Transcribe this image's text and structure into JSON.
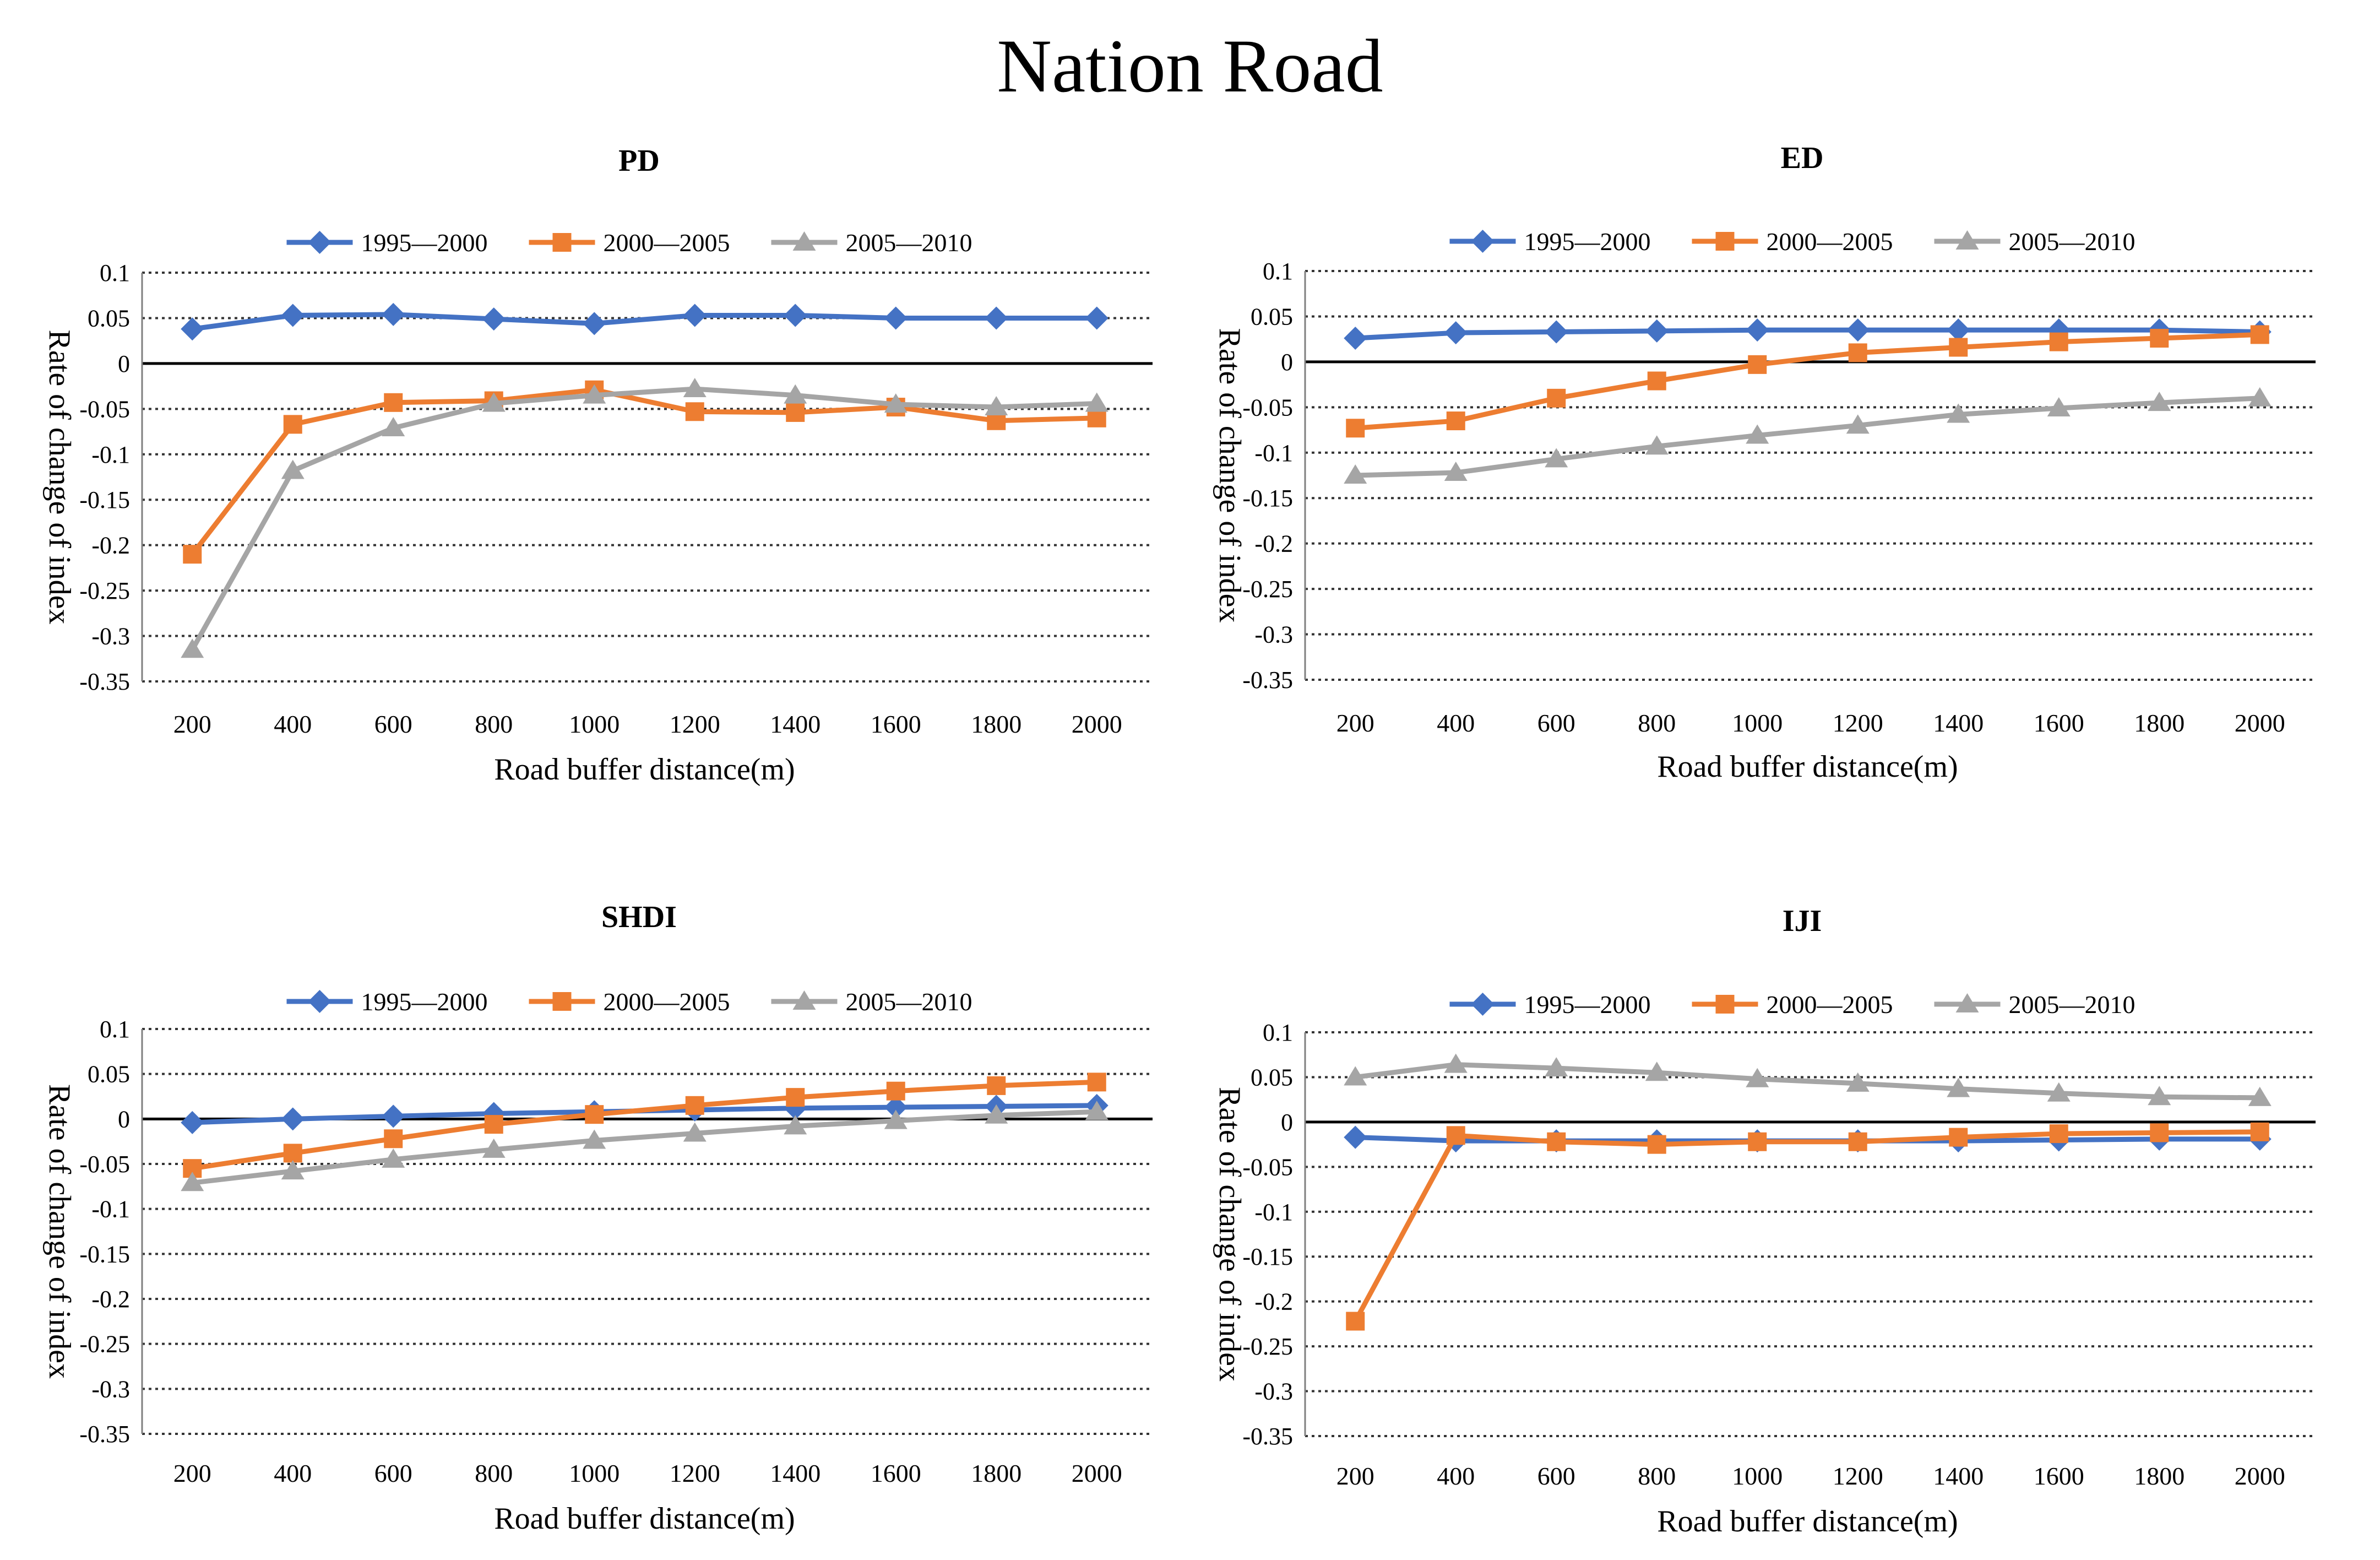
{
  "page_title": "Nation Road",
  "colors": {
    "series_1": "#4472C4",
    "series_2": "#ED7D31",
    "series_3": "#A5A5A5",
    "axis": "#000000",
    "grid": "#333333"
  },
  "chart_data": [
    {
      "type": "line",
      "title": "PD",
      "xlabel": "Road buffer distance(m)",
      "ylabel": "Rate of change of index",
      "ylim": [
        -0.35,
        0.1
      ],
      "yticks": [
        "0.1",
        "0.05",
        "0",
        "-0.05",
        "-0.1",
        "-0.15",
        "-0.2",
        "-0.25",
        "-0.3",
        "-0.35"
      ],
      "grid": true,
      "legend": "top",
      "categories": [
        "200",
        "400",
        "600",
        "800",
        "1000",
        "1200",
        "1400",
        "1600",
        "1800",
        "2000"
      ],
      "series": [
        {
          "name": "1995—2000",
          "marker": "diamond",
          "values": [
            0.038,
            0.053,
            0.054,
            0.049,
            0.044,
            0.053,
            0.053,
            0.05,
            0.05,
            0.05
          ]
        },
        {
          "name": "2000—2005",
          "marker": "square",
          "values": [
            -0.21,
            -0.067,
            -0.043,
            -0.041,
            -0.029,
            -0.053,
            -0.054,
            -0.048,
            -0.063,
            -0.06
          ]
        },
        {
          "name": "2005—2010",
          "marker": "triangle",
          "values": [
            -0.315,
            -0.118,
            -0.071,
            -0.044,
            -0.035,
            -0.028,
            -0.035,
            -0.045,
            -0.048,
            -0.044
          ]
        }
      ]
    },
    {
      "type": "line",
      "title": "ED",
      "xlabel": "Road buffer distance(m)",
      "ylabel": "Rate of change of index",
      "ylim": [
        -0.35,
        0.1
      ],
      "yticks": [
        "0.1",
        "0.05",
        "0",
        "-0.05",
        "-0.1",
        "-0.15",
        "-0.2",
        "-0.25",
        "-0.3",
        "-0.35"
      ],
      "grid": true,
      "legend": "top",
      "categories": [
        "200",
        "400",
        "600",
        "800",
        "1000",
        "1200",
        "1400",
        "1600",
        "1800",
        "2000"
      ],
      "series": [
        {
          "name": "1995—2000",
          "marker": "diamond",
          "values": [
            0.026,
            0.032,
            0.033,
            0.034,
            0.035,
            0.035,
            0.035,
            0.035,
            0.035,
            0.033
          ]
        },
        {
          "name": "2000—2005",
          "marker": "square",
          "values": [
            -0.073,
            -0.065,
            -0.04,
            -0.021,
            -0.003,
            0.01,
            0.016,
            0.022,
            0.026,
            0.03
          ]
        },
        {
          "name": "2005—2010",
          "marker": "triangle",
          "values": [
            -0.125,
            -0.122,
            -0.107,
            -0.093,
            -0.081,
            -0.07,
            -0.058,
            -0.051,
            -0.045,
            -0.04
          ]
        }
      ]
    },
    {
      "type": "line",
      "title": "SHDI",
      "xlabel": "Road buffer distance(m)",
      "ylabel": "Rate of change of index",
      "ylim": [
        -0.35,
        0.1
      ],
      "yticks": [
        "0.1",
        "0.05",
        "0",
        "-0.05",
        "-0.1",
        "-0.15",
        "-0.2",
        "-0.25",
        "-0.3",
        "-0.35"
      ],
      "grid": true,
      "legend": "top",
      "categories": [
        "200",
        "400",
        "600",
        "800",
        "1000",
        "1200",
        "1400",
        "1600",
        "1800",
        "2000"
      ],
      "series": [
        {
          "name": "1995—2000",
          "marker": "diamond",
          "values": [
            -0.004,
            0.0,
            0.003,
            0.006,
            0.008,
            0.01,
            0.012,
            0.013,
            0.014,
            0.015
          ]
        },
        {
          "name": "2000—2005",
          "marker": "square",
          "values": [
            -0.055,
            -0.038,
            -0.022,
            -0.006,
            0.005,
            0.015,
            0.024,
            0.031,
            0.037,
            0.041
          ]
        },
        {
          "name": "2005—2010",
          "marker": "triangle",
          "values": [
            -0.071,
            -0.058,
            -0.045,
            -0.034,
            -0.024,
            -0.016,
            -0.008,
            -0.002,
            0.004,
            0.008
          ]
        }
      ]
    },
    {
      "type": "line",
      "title": "IJI",
      "xlabel": "Road buffer distance(m)",
      "ylabel": "Rate of change of index",
      "ylim": [
        -0.35,
        0.1
      ],
      "yticks": [
        "0.1",
        "0.05",
        "0",
        "-0.05",
        "-0.1",
        "-0.15",
        "-0.2",
        "-0.25",
        "-0.3",
        "-0.35"
      ],
      "grid": true,
      "legend": "top",
      "categories": [
        "200",
        "400",
        "600",
        "800",
        "1000",
        "1200",
        "1400",
        "1600",
        "1800",
        "2000"
      ],
      "series": [
        {
          "name": "1995—2000",
          "marker": "diamond",
          "values": [
            -0.017,
            -0.021,
            -0.021,
            -0.021,
            -0.021,
            -0.021,
            -0.021,
            -0.02,
            -0.019,
            -0.019
          ]
        },
        {
          "name": "2000—2005",
          "marker": "square",
          "values": [
            -0.222,
            -0.015,
            -0.022,
            -0.025,
            -0.022,
            -0.022,
            -0.017,
            -0.013,
            -0.012,
            -0.011
          ]
        },
        {
          "name": "2005—2010",
          "marker": "triangle",
          "values": [
            0.05,
            0.064,
            0.06,
            0.055,
            0.048,
            0.043,
            0.037,
            0.032,
            0.028,
            0.027
          ]
        }
      ]
    }
  ]
}
